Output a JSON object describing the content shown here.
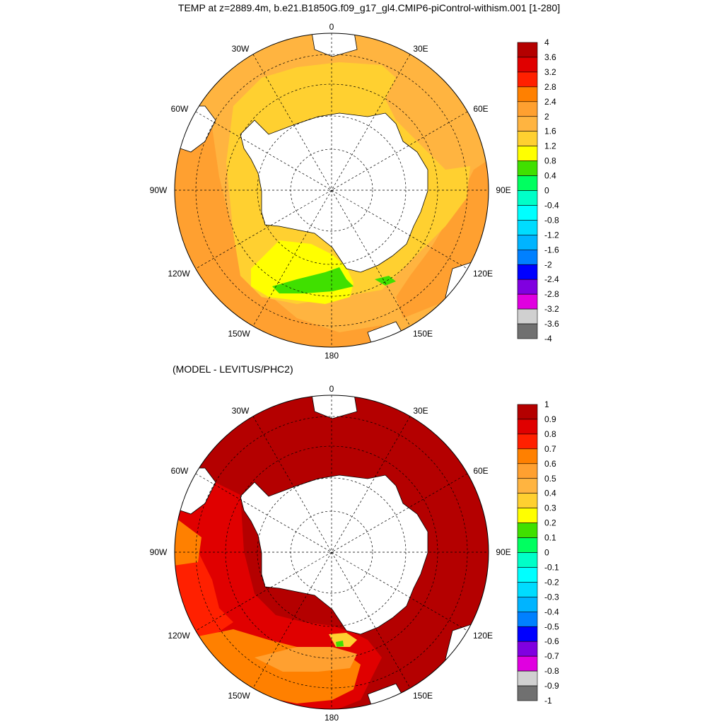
{
  "title": "TEMP at z=2889.4m, b.e21.B1850G.f09_g17_gl4.CMIP6-piControl-withism.001 [1-280]",
  "subtitle": "(MODEL - LEVITUS/PHC2)",
  "lon_labels": [
    "0",
    "30E",
    "60E",
    "90E",
    "120E",
    "150E",
    "180",
    "150W",
    "120W",
    "90W",
    "60W",
    "30W"
  ],
  "colors": {
    "land": "#ffffff",
    "coast": "#000000",
    "grid": "#000000"
  },
  "panels": [
    {
      "name": "model",
      "colorbar": {
        "labels": [
          "4",
          "3.6",
          "3.2",
          "2.8",
          "2.4",
          "2",
          "1.6",
          "1.2",
          "0.8",
          "0.4",
          "0",
          "-0.4",
          "-0.8",
          "-1.2",
          "-1.6",
          "-2",
          "-2.4",
          "-2.8",
          "-3.2",
          "-3.6",
          "-4"
        ],
        "colors": [
          "#b40000",
          "#e00000",
          "#ff2000",
          "#ff8000",
          "#ffa030",
          "#ffb440",
          "#ffd030",
          "#ffff00",
          "#40e000",
          "#00ff60",
          "#00ffc8",
          "#00ffff",
          "#00dcff",
          "#00b4ff",
          "#0080ff",
          "#0000ff",
          "#8000e0",
          "#e000e0",
          "#d0d0d0",
          "#707070"
        ]
      },
      "regions": [
        {
          "name": "background-field",
          "color": "#ffb440"
        },
        {
          "name": "subpolar-band",
          "color": "#ffd030"
        },
        {
          "name": "ross-sea-yellow",
          "color": "#ffff00"
        },
        {
          "name": "ross-sea-green",
          "color": "#40e000"
        },
        {
          "name": "ross-sea-green-east",
          "color": "#40e000"
        },
        {
          "name": "outer-orange-west",
          "color": "#ffa030"
        },
        {
          "name": "outer-orange-east",
          "color": "#ffa030"
        }
      ]
    },
    {
      "name": "difference",
      "colorbar": {
        "labels": [
          "1",
          "0.9",
          "0.8",
          "0.7",
          "0.6",
          "0.5",
          "0.4",
          "0.3",
          "0.2",
          "0.1",
          "0",
          "-0.1",
          "-0.2",
          "-0.3",
          "-0.4",
          "-0.5",
          "-0.6",
          "-0.7",
          "-0.8",
          "-0.9",
          "-1"
        ],
        "colors": [
          "#b40000",
          "#e00000",
          "#ff2000",
          "#ff8000",
          "#ffa030",
          "#ffb440",
          "#ffd030",
          "#ffff00",
          "#40e000",
          "#00ff60",
          "#00ffc8",
          "#00ffff",
          "#00dcff",
          "#00b4ff",
          "#0080ff",
          "#0000ff",
          "#8000e0",
          "#e000e0",
          "#d0d0d0",
          "#707070"
        ]
      },
      "regions": [
        {
          "name": "background-field",
          "color": "#b40000"
        },
        {
          "name": "pacific-sector",
          "color": "#e00000"
        },
        {
          "name": "west-pacific-band",
          "color": "#ff2000"
        },
        {
          "name": "west-edge-orange",
          "color": "#ff8000"
        },
        {
          "name": "south-pacific-orange",
          "color": "#ff8000"
        },
        {
          "name": "ross-light-orange",
          "color": "#ffa030"
        },
        {
          "name": "ross-yellow",
          "color": "#ffd030"
        },
        {
          "name": "ross-green",
          "color": "#40e000"
        }
      ]
    }
  ]
}
